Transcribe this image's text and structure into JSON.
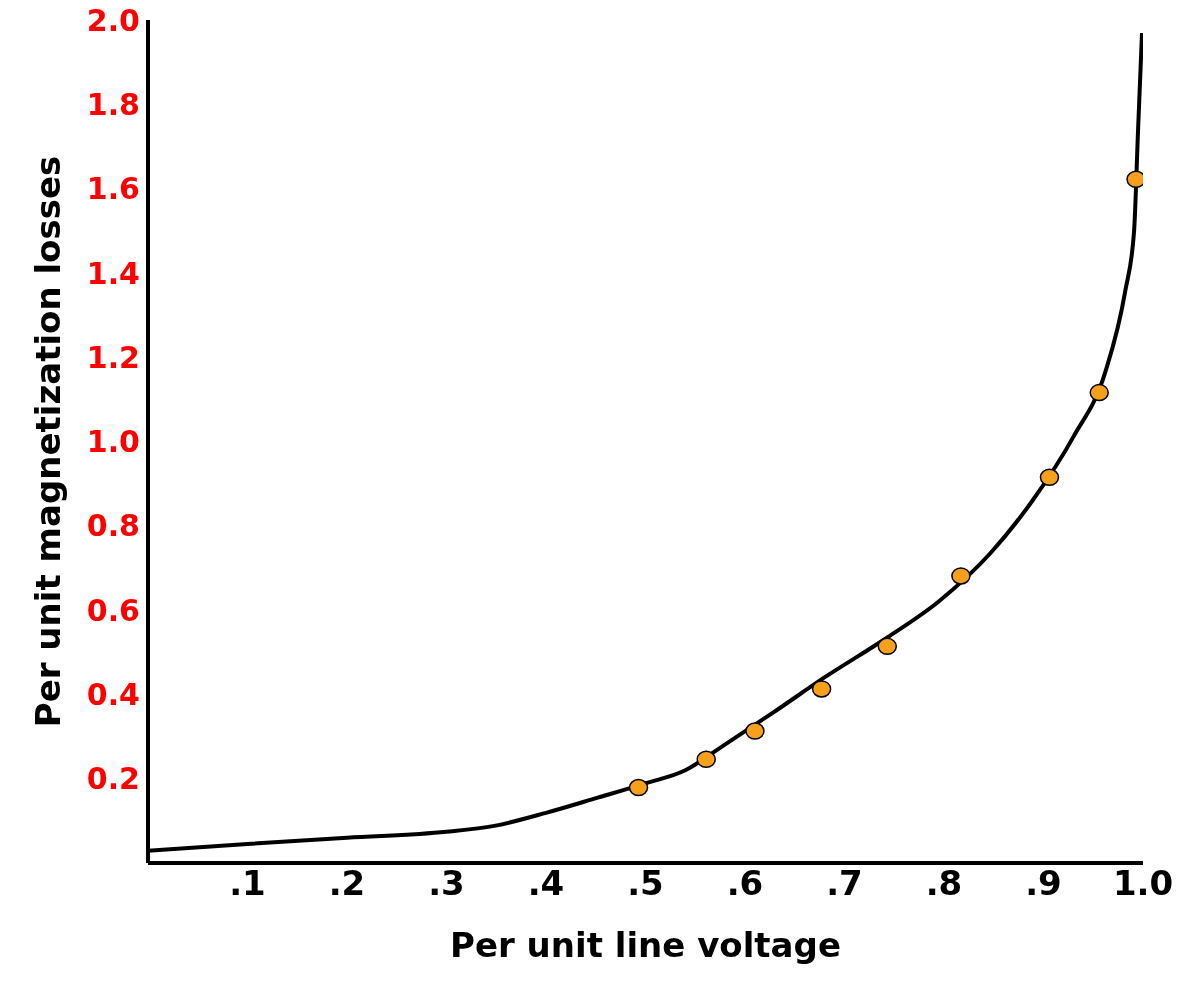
{
  "chart_data": {
    "type": "line",
    "xlabel": "Per unit line voltage",
    "ylabel": "Per unit magnetization losses",
    "xlim": [
      0,
      1.0
    ],
    "ylim": [
      0,
      2.0
    ],
    "xticks": [
      {
        "value": 0.1,
        "label": ".1"
      },
      {
        "value": 0.2,
        "label": ".2"
      },
      {
        "value": 0.3,
        "label": ".3"
      },
      {
        "value": 0.4,
        "label": ".4"
      },
      {
        "value": 0.5,
        "label": ".5"
      },
      {
        "value": 0.6,
        "label": ".6"
      },
      {
        "value": 0.7,
        "label": ".7"
      },
      {
        "value": 0.8,
        "label": ".8"
      },
      {
        "value": 0.9,
        "label": ".9"
      },
      {
        "value": 1.0,
        "label": "1.0"
      }
    ],
    "yticks": [
      {
        "value": 0.2,
        "label": "0.2"
      },
      {
        "value": 0.4,
        "label": "0.4"
      },
      {
        "value": 0.6,
        "label": "0.6"
      },
      {
        "value": 0.8,
        "label": "0.8"
      },
      {
        "value": 1.0,
        "label": "1.0"
      },
      {
        "value": 1.2,
        "label": "1.2"
      },
      {
        "value": 1.4,
        "label": "1.4"
      },
      {
        "value": 1.6,
        "label": "1.6"
      },
      {
        "value": 1.8,
        "label": "1.8"
      },
      {
        "value": 2.0,
        "label": "2.0"
      }
    ],
    "grid": false,
    "series": [
      {
        "color": "#000000",
        "marker": "none",
        "line_style": "solid",
        "x": [
          0,
          0.1,
          0.2,
          0.3,
          0.348,
          0.4,
          0.452,
          0.5,
          0.54,
          0.576,
          0.629,
          0.681,
          0.743,
          0.795,
          0.847,
          0.889,
          0.93,
          0.962,
          0.982,
          0.991,
          0.995,
          0.999
        ],
        "values": [
          0.029,
          0.045,
          0.06,
          0.074,
          0.088,
          0.119,
          0.155,
          0.189,
          0.22,
          0.275,
          0.358,
          0.442,
          0.535,
          0.621,
          0.736,
          0.86,
          1.011,
          1.164,
          1.355,
          1.498,
          1.737,
          1.969
        ]
      },
      {
        "type": "scatter",
        "color": "#f7a01c",
        "marker": "circle",
        "x": [
          0.493,
          0.561,
          0.61,
          0.677,
          0.743,
          0.817,
          0.906,
          0.956,
          0.993
        ],
        "values": [
          0.179,
          0.246,
          0.313,
          0.413,
          0.514,
          0.681,
          0.915,
          1.116,
          1.622
        ]
      }
    ]
  }
}
